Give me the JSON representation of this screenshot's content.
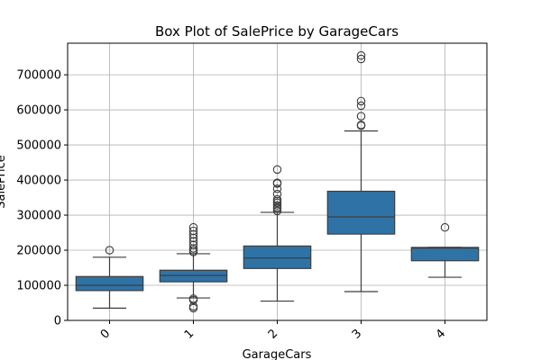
{
  "chart_data": {
    "type": "box",
    "title": "Box Plot of SalePrice by GarageCars",
    "xlabel": "GarageCars",
    "ylabel": "SalePrice",
    "ylim": [
      0,
      790000
    ],
    "yticks": [
      0,
      100000,
      200000,
      300000,
      400000,
      500000,
      600000,
      700000
    ],
    "ytick_labels": [
      "0",
      "100000",
      "200000",
      "300000",
      "400000",
      "500000",
      "600000",
      "700000"
    ],
    "grid": true,
    "box_color": "#2f73a6",
    "categories": [
      "0",
      "1",
      "2",
      "3",
      "4"
    ],
    "boxes": [
      {
        "category": "0",
        "whisker_low": 35000,
        "q1": 85000,
        "median": 100000,
        "q3": 125000,
        "whisker_high": 180000,
        "outliers": [
          200000
        ]
      },
      {
        "category": "1",
        "whisker_low": 64000,
        "q1": 110000,
        "median": 128000,
        "q3": 143000,
        "whisker_high": 190000,
        "outliers": [
          35000,
          40000,
          58000,
          62000,
          195000,
          200000,
          205000,
          215000,
          225000,
          235000,
          245000,
          255000,
          265000
        ]
      },
      {
        "category": "2",
        "whisker_low": 55000,
        "q1": 148000,
        "median": 178000,
        "q3": 212000,
        "whisker_high": 308000,
        "outliers": [
          312000,
          318000,
          322000,
          328000,
          335000,
          340000,
          345000,
          360000,
          375000,
          390000,
          392000,
          430000
        ]
      },
      {
        "category": "3",
        "whisker_low": 82000,
        "q1": 246000,
        "median": 295000,
        "q3": 368000,
        "whisker_high": 540000,
        "outliers": [
          555000,
          557000,
          582000,
          612000,
          625000,
          745000,
          755000
        ]
      },
      {
        "category": "4",
        "whisker_low": 123000,
        "q1": 170000,
        "median": 206000,
        "q3": 208000,
        "whisker_high": 208000,
        "outliers": [
          265000
        ]
      }
    ]
  }
}
